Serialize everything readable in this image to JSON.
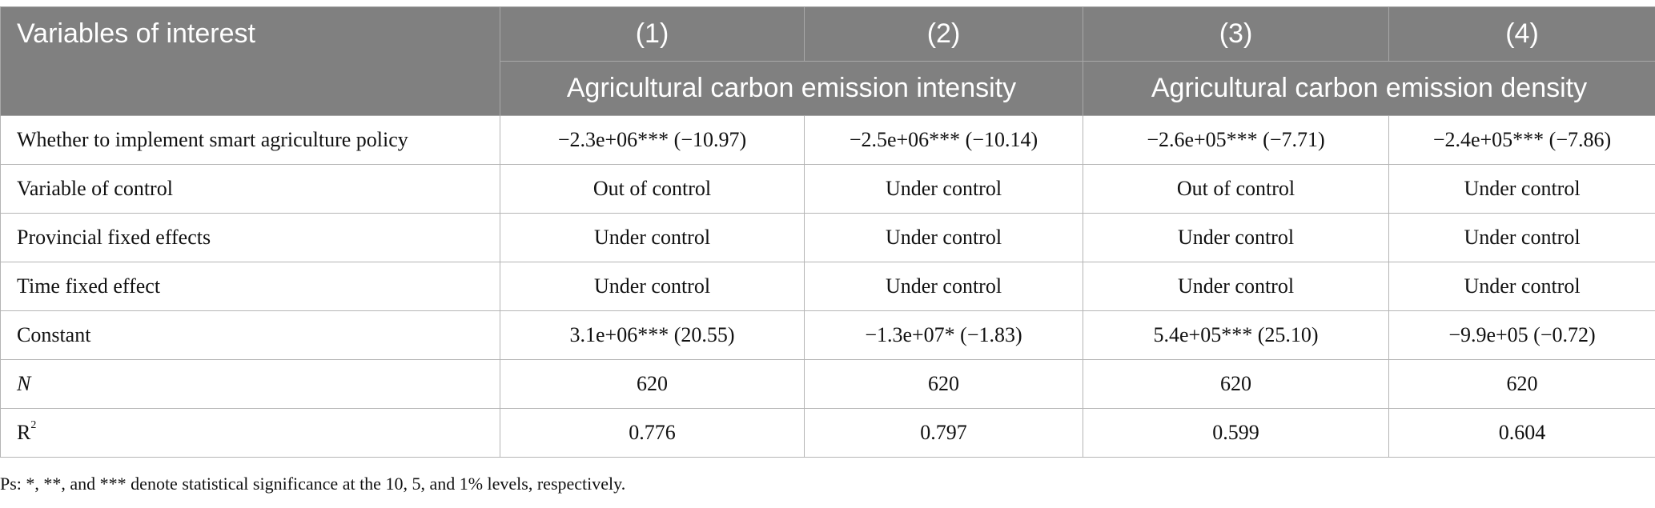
{
  "header": {
    "variables_label": "Variables of interest",
    "columns": [
      "(1)",
      "(2)",
      "(3)",
      "(4)"
    ],
    "groups": [
      "Agricultural carbon emission intensity",
      "Agricultural carbon emission density"
    ]
  },
  "rows": [
    {
      "label": "Whether to implement smart agriculture policy",
      "cells": [
        "−2.3e+06*** (−10.97)",
        "−2.5e+06*** (−10.14)",
        "−2.6e+05*** (−7.71)",
        "−2.4e+05*** (−7.86)"
      ]
    },
    {
      "label": "Variable of control",
      "cells": [
        "Out of control",
        "Under control",
        "Out of control",
        "Under control"
      ]
    },
    {
      "label": "Provincial fixed effects",
      "cells": [
        "Under control",
        "Under control",
        "Under control",
        "Under control"
      ]
    },
    {
      "label": "Time fixed effect",
      "cells": [
        "Under control",
        "Under control",
        "Under control",
        "Under control"
      ]
    },
    {
      "label": "Constant",
      "cells": [
        "3.1e+06*** (20.55)",
        "−1.3e+07* (−1.83)",
        "5.4e+05*** (25.10)",
        "−9.9e+05 (−0.72)"
      ]
    },
    {
      "label": "N",
      "cells": [
        "620",
        "620",
        "620",
        "620"
      ]
    },
    {
      "label": "R",
      "label_sup": "2",
      "cells": [
        "0.776",
        "0.797",
        "0.599",
        "0.604"
      ]
    }
  ],
  "note": "Ps: *, **, and *** denote statistical significance at the 10, 5, and 1% levels, respectively.",
  "colors": {
    "header_bg": "#808080",
    "header_text": "#ffffff",
    "grid": "#b5b5b5"
  }
}
